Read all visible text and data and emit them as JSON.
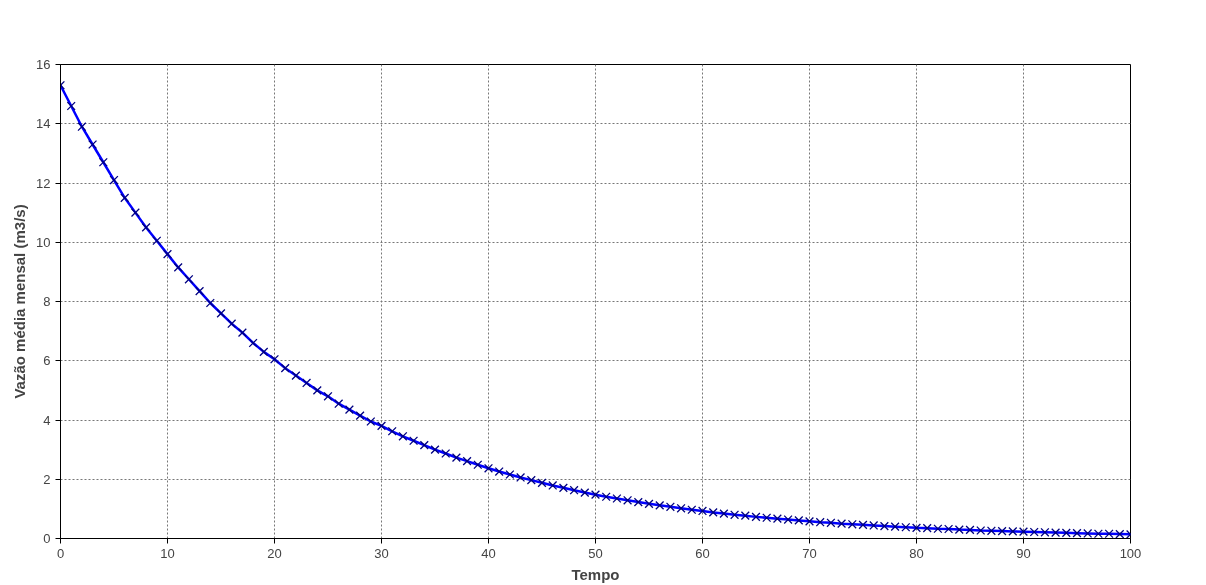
{
  "chart_data": {
    "type": "line",
    "xlabel": "Tempo",
    "ylabel": "Vazão média mensal (m3/s)",
    "xlim": [
      0,
      100
    ],
    "ylim": [
      0,
      16
    ],
    "xticks": [
      0,
      10,
      20,
      30,
      40,
      50,
      60,
      70,
      80,
      90,
      100
    ],
    "yticks": [
      0,
      2,
      4,
      6,
      8,
      10,
      12,
      14,
      16
    ],
    "grid": true,
    "marker": "cross",
    "line_style": "solid",
    "x": [
      0,
      1,
      2,
      3,
      4,
      5,
      6,
      7,
      8,
      9,
      10,
      11,
      12,
      13,
      14,
      15,
      16,
      17,
      18,
      19,
      20,
      21,
      22,
      23,
      24,
      25,
      26,
      27,
      28,
      29,
      30,
      31,
      32,
      33,
      34,
      35,
      36,
      37,
      38,
      39,
      40,
      41,
      42,
      43,
      44,
      45,
      46,
      47,
      48,
      49,
      50,
      51,
      52,
      53,
      54,
      55,
      56,
      57,
      58,
      59,
      60,
      61,
      62,
      63,
      64,
      65,
      66,
      67,
      68,
      69,
      70,
      71,
      72,
      73,
      74,
      75,
      76,
      77,
      78,
      79,
      80,
      81,
      82,
      83,
      84,
      85,
      86,
      87,
      88,
      89,
      90,
      91,
      92,
      93,
      94,
      95,
      96,
      97,
      98,
      99,
      100
    ],
    "series": [
      {
        "color": "#0000ff",
        "values": [
          15.3,
          14.6,
          13.9,
          13.3,
          12.7,
          12.1,
          11.5,
          11.0,
          10.5,
          10.05,
          9.6,
          9.15,
          8.75,
          8.35,
          7.95,
          7.6,
          7.25,
          6.95,
          6.6,
          6.3,
          6.05,
          5.75,
          5.5,
          5.25,
          5.0,
          4.8,
          4.55,
          4.35,
          4.15,
          3.95,
          3.8,
          3.62,
          3.45,
          3.3,
          3.15,
          3.0,
          2.87,
          2.73,
          2.61,
          2.49,
          2.37,
          2.26,
          2.16,
          2.06,
          1.97,
          1.88,
          1.79,
          1.71,
          1.63,
          1.55,
          1.48,
          1.41,
          1.35,
          1.29,
          1.23,
          1.17,
          1.12,
          1.07,
          1.02,
          0.97,
          0.93,
          0.88,
          0.84,
          0.8,
          0.77,
          0.73,
          0.7,
          0.67,
          0.64,
          0.61,
          0.58,
          0.55,
          0.53,
          0.5,
          0.48,
          0.46,
          0.44,
          0.42,
          0.4,
          0.38,
          0.36,
          0.35,
          0.33,
          0.32,
          0.3,
          0.29,
          0.27,
          0.26,
          0.25,
          0.24,
          0.23,
          0.22,
          0.21,
          0.2,
          0.19,
          0.18,
          0.17,
          0.16,
          0.16,
          0.15,
          0.14
        ]
      }
    ]
  }
}
